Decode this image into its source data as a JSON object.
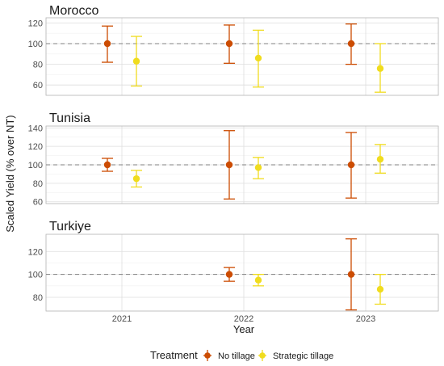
{
  "chart_data": {
    "type": "scatter",
    "variant": "point-with-error-bars, faceted",
    "xlabel": "Year",
    "ylabel": "Scaled Yield (% over NT)",
    "x_categories": [
      "2021",
      "2022",
      "2023"
    ],
    "reference_line": 100,
    "grid": true,
    "legend": {
      "title": "Treatment",
      "position": "bottom",
      "entries": [
        {
          "name": "No tillage",
          "color": "#cc4c02"
        },
        {
          "name": "Strategic tillage",
          "color": "#f0dc1e"
        }
      ]
    },
    "facets": [
      {
        "title": "Morocco",
        "ylim": [
          50,
          125
        ],
        "yticks": [
          60,
          80,
          100,
          120
        ],
        "series": [
          {
            "name": "No tillage",
            "points": [
              {
                "x": "2021",
                "y": 100,
                "ymin": 82,
                "ymax": 117
              },
              {
                "x": "2022",
                "y": 100,
                "ymin": 81,
                "ymax": 118
              },
              {
                "x": "2023",
                "y": 100,
                "ymin": 80,
                "ymax": 119
              }
            ]
          },
          {
            "name": "Strategic tillage",
            "points": [
              {
                "x": "2021",
                "y": 83,
                "ymin": 59,
                "ymax": 107
              },
              {
                "x": "2022",
                "y": 86,
                "ymin": 58,
                "ymax": 113
              },
              {
                "x": "2023",
                "y": 76,
                "ymin": 53,
                "ymax": 100
              }
            ]
          }
        ]
      },
      {
        "title": "Tunisia",
        "ylim": [
          58,
          142
        ],
        "yticks": [
          60,
          80,
          100,
          120,
          140
        ],
        "series": [
          {
            "name": "No tillage",
            "points": [
              {
                "x": "2021",
                "y": 100,
                "ymin": 93,
                "ymax": 107
              },
              {
                "x": "2022",
                "y": 100,
                "ymin": 63,
                "ymax": 137
              },
              {
                "x": "2023",
                "y": 100,
                "ymin": 64,
                "ymax": 135
              }
            ]
          },
          {
            "name": "Strategic tillage",
            "points": [
              {
                "x": "2021",
                "y": 85,
                "ymin": 76,
                "ymax": 94
              },
              {
                "x": "2022",
                "y": 97,
                "ymin": 85,
                "ymax": 108
              },
              {
                "x": "2023",
                "y": 106,
                "ymin": 91,
                "ymax": 122
              }
            ]
          }
        ]
      },
      {
        "title": "Turkiye",
        "ylim": [
          68,
          135
        ],
        "yticks": [
          80,
          100,
          120
        ],
        "series": [
          {
            "name": "No tillage",
            "points": [
              {
                "x": "2022",
                "y": 100,
                "ymin": 94,
                "ymax": 106
              },
              {
                "x": "2023",
                "y": 100,
                "ymin": 69,
                "ymax": 131
              }
            ]
          },
          {
            "name": "Strategic tillage",
            "points": [
              {
                "x": "2022",
                "y": 95,
                "ymin": 90,
                "ymax": 100
              },
              {
                "x": "2023",
                "y": 87,
                "ymin": 74,
                "ymax": 100
              }
            ]
          }
        ]
      }
    ]
  }
}
